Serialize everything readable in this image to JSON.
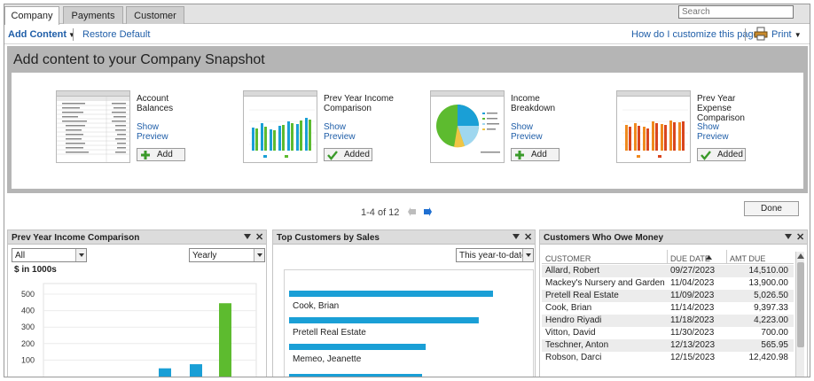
{
  "tabs": [
    {
      "label": "Company",
      "active": true
    },
    {
      "label": "Payments",
      "active": false
    },
    {
      "label": "Customer",
      "active": false
    }
  ],
  "search": {
    "placeholder": "Search"
  },
  "toolbar": {
    "add_content": "Add Content",
    "restore_default": "Restore Default",
    "help": "How do I customize this page?",
    "print": "Print"
  },
  "add_panel": {
    "title": "Add content to your Company Snapshot",
    "show_preview": "Show Preview",
    "cards": [
      {
        "name": "Account Balances",
        "button": "Add",
        "state": "add"
      },
      {
        "name": "Prev Year Income Comparison",
        "button": "Added",
        "state": "added"
      },
      {
        "name": "Income Breakdown",
        "button": "Add",
        "state": "add"
      },
      {
        "name": "Prev Year Expense Comparison",
        "button": "Added",
        "state": "added"
      }
    ],
    "pager": "1-4 of 12",
    "done": "Done"
  },
  "widget_income": {
    "title": "Prev Year Income Comparison",
    "filter": "All",
    "period": "Yearly",
    "unit": "$ in 1000s",
    "chart_data": {
      "type": "bar",
      "yticks": [
        500,
        400,
        300,
        200,
        100
      ],
      "ylim": [
        0,
        500
      ],
      "series": [
        {
          "color": "#1a9fd6",
          "values": [
            50,
            75
          ]
        },
        {
          "color": "#5dbb2f",
          "values": [
            445
          ]
        }
      ]
    }
  },
  "widget_customers": {
    "title": "Top Customers by Sales",
    "period": "This year-to-date",
    "chart_data": {
      "type": "bar",
      "categories": [
        "Cook, Brian",
        "Pretell Real Estate",
        "Memeo, Jeanette"
      ],
      "values": [
        1,
        0.93,
        0.67
      ]
    }
  },
  "widget_owe": {
    "title": "Customers Who Owe Money",
    "columns": [
      "CUSTOMER",
      "DUE DATE",
      "AMT DUE"
    ],
    "rows": [
      [
        "Allard, Robert",
        "09/27/2023",
        "14,510.00"
      ],
      [
        "Mackey's Nursery and Garden ...",
        "11/04/2023",
        "13,900.00"
      ],
      [
        "Pretell Real Estate",
        "11/09/2023",
        "5,026.50"
      ],
      [
        "Cook, Brian",
        "11/14/2023",
        "9,397.33"
      ],
      [
        "Hendro Riyadi",
        "11/18/2023",
        "4,223.00"
      ],
      [
        "Vitton, David",
        "11/30/2023",
        "700.00"
      ],
      [
        "Teschner, Anton",
        "12/13/2023",
        "565.95"
      ],
      [
        "Robson, Darci",
        "12/15/2023",
        "12,420.98"
      ]
    ]
  },
  "colors": {
    "link": "#1f5ea8",
    "bar_blue": "#1a9fd6",
    "bar_green": "#5dbb2f",
    "panel_gray": "#b5b5b5"
  }
}
